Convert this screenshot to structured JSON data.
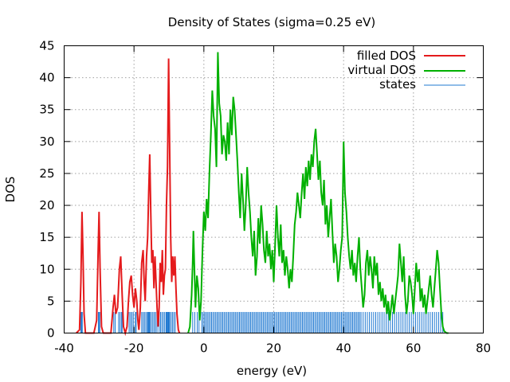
{
  "chart_data": {
    "type": "line",
    "title": "Density of States (sigma=0.25 eV)",
    "xlabel": "energy (eV)",
    "ylabel": "DOS",
    "xlim": [
      -40,
      80
    ],
    "ylim": [
      0,
      45
    ],
    "xticks": [
      -40,
      -20,
      0,
      20,
      40,
      60,
      80
    ],
    "yticks": [
      0,
      5,
      10,
      15,
      20,
      25,
      30,
      35,
      40,
      45
    ],
    "grid": true,
    "legend_position": "top-right",
    "series": [
      {
        "name": "filled DOS",
        "color": "#e41a1c",
        "points": [
          [
            -36.5,
            0
          ],
          [
            -35.6,
            0.5
          ],
          [
            -35.2,
            8
          ],
          [
            -34.9,
            19
          ],
          [
            -34.6,
            12
          ],
          [
            -34.3,
            3
          ],
          [
            -33.9,
            0
          ],
          [
            -31.5,
            0
          ],
          [
            -30.7,
            2
          ],
          [
            -30.3,
            12
          ],
          [
            -30.0,
            19
          ],
          [
            -29.7,
            10
          ],
          [
            -29.3,
            1
          ],
          [
            -28.8,
            0
          ],
          [
            -26.6,
            0
          ],
          [
            -26.0,
            4
          ],
          [
            -25.6,
            6
          ],
          [
            -25.2,
            3
          ],
          [
            -24.7,
            4
          ],
          [
            -24.2,
            10
          ],
          [
            -23.8,
            12
          ],
          [
            -23.4,
            6
          ],
          [
            -23.0,
            1
          ],
          [
            -22.5,
            0
          ],
          [
            -22.0,
            1
          ],
          [
            -21.6,
            5
          ],
          [
            -21.2,
            8
          ],
          [
            -20.8,
            9
          ],
          [
            -20.4,
            6
          ],
          [
            -20.0,
            4
          ],
          [
            -19.6,
            7
          ],
          [
            -19.2,
            5
          ],
          [
            -18.9,
            2
          ],
          [
            -18.6,
            0.5
          ],
          [
            -18.2,
            4
          ],
          [
            -17.8,
            11
          ],
          [
            -17.4,
            13
          ],
          [
            -17.1,
            8
          ],
          [
            -16.8,
            5
          ],
          [
            -16.4,
            12
          ],
          [
            -16.1,
            15
          ],
          [
            -15.8,
            22
          ],
          [
            -15.5,
            28
          ],
          [
            -15.2,
            19
          ],
          [
            -14.9,
            11
          ],
          [
            -14.6,
            13
          ],
          [
            -14.3,
            7
          ],
          [
            -14.0,
            12
          ],
          [
            -13.7,
            8
          ],
          [
            -13.4,
            4
          ],
          [
            -13.1,
            1
          ],
          [
            -12.8,
            4
          ],
          [
            -12.5,
            11
          ],
          [
            -12.2,
            8
          ],
          [
            -11.9,
            13
          ],
          [
            -11.6,
            6
          ],
          [
            -11.3,
            9
          ],
          [
            -11.0,
            10
          ],
          [
            -10.7,
            20
          ],
          [
            -10.4,
            26
          ],
          [
            -10.1,
            43
          ],
          [
            -9.8,
            29
          ],
          [
            -9.5,
            15
          ],
          [
            -9.2,
            8
          ],
          [
            -8.9,
            12
          ],
          [
            -8.6,
            9
          ],
          [
            -8.3,
            12
          ],
          [
            -8.0,
            7
          ],
          [
            -7.7,
            3
          ],
          [
            -7.3,
            0.5
          ],
          [
            -7.0,
            0
          ]
        ]
      },
      {
        "name": "virtual DOS",
        "color": "#00b000",
        "points": [
          [
            -4.5,
            0
          ],
          [
            -4.0,
            1
          ],
          [
            -3.5,
            6
          ],
          [
            -3.2,
            11
          ],
          [
            -3.0,
            16
          ],
          [
            -2.7,
            10
          ],
          [
            -2.4,
            4
          ],
          [
            -2.0,
            9
          ],
          [
            -1.6,
            7
          ],
          [
            -1.2,
            2
          ],
          [
            -0.8,
            5
          ],
          [
            -0.4,
            13
          ],
          [
            0.0,
            19
          ],
          [
            0.4,
            16
          ],
          [
            0.8,
            21
          ],
          [
            1.2,
            18
          ],
          [
            1.6,
            25
          ],
          [
            2.0,
            31
          ],
          [
            2.4,
            38
          ],
          [
            2.8,
            34
          ],
          [
            3.2,
            32
          ],
          [
            3.6,
            26
          ],
          [
            4.0,
            44
          ],
          [
            4.4,
            36
          ],
          [
            4.8,
            34
          ],
          [
            5.2,
            28
          ],
          [
            5.6,
            31
          ],
          [
            6.0,
            30
          ],
          [
            6.4,
            27
          ],
          [
            6.8,
            33
          ],
          [
            7.2,
            28
          ],
          [
            7.6,
            35
          ],
          [
            8.0,
            31
          ],
          [
            8.4,
            37
          ],
          [
            8.8,
            35
          ],
          [
            9.2,
            31
          ],
          [
            9.6,
            27
          ],
          [
            10.0,
            22
          ],
          [
            10.4,
            18
          ],
          [
            10.8,
            25
          ],
          [
            11.2,
            21
          ],
          [
            11.6,
            16
          ],
          [
            12.0,
            20
          ],
          [
            12.4,
            26
          ],
          [
            12.8,
            22
          ],
          [
            13.2,
            19
          ],
          [
            13.6,
            15
          ],
          [
            14.0,
            12
          ],
          [
            14.4,
            16
          ],
          [
            14.8,
            9
          ],
          [
            15.2,
            12
          ],
          [
            15.6,
            18
          ],
          [
            16.0,
            14
          ],
          [
            16.4,
            20
          ],
          [
            16.8,
            17
          ],
          [
            17.2,
            13
          ],
          [
            17.6,
            11
          ],
          [
            18.0,
            16
          ],
          [
            18.4,
            12
          ],
          [
            18.8,
            14
          ],
          [
            19.2,
            10
          ],
          [
            19.6,
            13
          ],
          [
            20.0,
            8
          ],
          [
            20.4,
            14
          ],
          [
            20.8,
            20
          ],
          [
            21.2,
            15
          ],
          [
            21.6,
            12
          ],
          [
            22.0,
            17
          ],
          [
            22.4,
            11
          ],
          [
            22.8,
            13
          ],
          [
            23.2,
            9
          ],
          [
            23.6,
            12
          ],
          [
            24.0,
            10
          ],
          [
            24.4,
            7
          ],
          [
            24.8,
            10
          ],
          [
            25.2,
            8
          ],
          [
            25.6,
            12
          ],
          [
            26.0,
            17
          ],
          [
            26.4,
            19
          ],
          [
            26.8,
            22
          ],
          [
            27.2,
            20
          ],
          [
            27.6,
            18
          ],
          [
            28.0,
            22
          ],
          [
            28.4,
            25
          ],
          [
            28.8,
            21
          ],
          [
            29.2,
            26
          ],
          [
            29.6,
            23
          ],
          [
            30.0,
            27
          ],
          [
            30.4,
            24
          ],
          [
            30.8,
            28
          ],
          [
            31.2,
            26
          ],
          [
            31.6,
            30
          ],
          [
            32.0,
            32
          ],
          [
            32.4,
            28
          ],
          [
            32.8,
            24
          ],
          [
            33.2,
            27
          ],
          [
            33.6,
            22
          ],
          [
            34.0,
            20
          ],
          [
            34.4,
            24
          ],
          [
            34.8,
            17
          ],
          [
            35.2,
            20
          ],
          [
            35.6,
            15
          ],
          [
            36.0,
            18
          ],
          [
            36.4,
            21
          ],
          [
            36.8,
            16
          ],
          [
            37.2,
            11
          ],
          [
            37.6,
            14
          ],
          [
            38.0,
            12
          ],
          [
            38.4,
            8
          ],
          [
            38.8,
            10
          ],
          [
            39.2,
            13
          ],
          [
            39.6,
            15
          ],
          [
            40.0,
            30
          ],
          [
            40.4,
            22
          ],
          [
            40.8,
            19
          ],
          [
            41.2,
            15
          ],
          [
            41.6,
            12
          ],
          [
            42.0,
            10
          ],
          [
            42.4,
            13
          ],
          [
            42.8,
            9
          ],
          [
            43.2,
            11
          ],
          [
            43.6,
            8
          ],
          [
            44.0,
            12
          ],
          [
            44.4,
            15
          ],
          [
            44.8,
            10
          ],
          [
            45.2,
            7
          ],
          [
            45.6,
            4
          ],
          [
            46.0,
            6
          ],
          [
            46.4,
            11
          ],
          [
            46.8,
            13
          ],
          [
            47.2,
            9
          ],
          [
            47.6,
            12
          ],
          [
            48.0,
            10
          ],
          [
            48.4,
            7
          ],
          [
            48.8,
            12
          ],
          [
            49.2,
            9
          ],
          [
            49.6,
            11
          ],
          [
            50.0,
            6
          ],
          [
            50.4,
            8
          ],
          [
            50.8,
            5
          ],
          [
            51.2,
            7
          ],
          [
            51.6,
            4
          ],
          [
            52.0,
            6
          ],
          [
            52.4,
            3
          ],
          [
            52.8,
            5
          ],
          [
            53.2,
            2
          ],
          [
            53.6,
            4
          ],
          [
            54.0,
            6
          ],
          [
            54.4,
            3
          ],
          [
            54.8,
            5
          ],
          [
            55.2,
            7
          ],
          [
            55.6,
            9
          ],
          [
            56.0,
            14
          ],
          [
            56.4,
            11
          ],
          [
            56.8,
            8
          ],
          [
            57.2,
            12
          ],
          [
            57.6,
            6
          ],
          [
            58.0,
            3
          ],
          [
            58.4,
            5
          ],
          [
            58.8,
            9
          ],
          [
            59.2,
            8
          ],
          [
            59.6,
            6
          ],
          [
            60.0,
            3
          ],
          [
            60.4,
            7
          ],
          [
            60.8,
            11
          ],
          [
            61.2,
            8
          ],
          [
            61.6,
            10
          ],
          [
            62.0,
            5
          ],
          [
            62.4,
            7
          ],
          [
            62.8,
            4
          ],
          [
            63.2,
            6
          ],
          [
            63.6,
            3
          ],
          [
            64.0,
            5
          ],
          [
            64.4,
            7
          ],
          [
            64.8,
            9
          ],
          [
            65.2,
            6
          ],
          [
            65.6,
            4
          ],
          [
            66.0,
            7
          ],
          [
            66.4,
            10
          ],
          [
            66.8,
            13
          ],
          [
            67.2,
            11
          ],
          [
            67.6,
            7
          ],
          [
            68.0,
            3
          ],
          [
            68.4,
            1
          ],
          [
            68.8,
            0.3
          ],
          [
            69.5,
            0
          ],
          [
            70.0,
            0
          ]
        ]
      },
      {
        "name": "states",
        "color": "#1f78d1",
        "height": 3.3,
        "energies": [
          -35.2,
          -35.0,
          -34.8,
          -30.2,
          -30.0,
          -29.8,
          -25.8,
          -25.4,
          -24.4,
          -24.0,
          -23.6,
          -23.4,
          -21.4,
          -21.0,
          -20.6,
          -20.2,
          -19.6,
          -19.4,
          -17.8,
          -17.4,
          -17.0,
          -16.6,
          -16.2,
          -16.0,
          -15.8,
          -15.6,
          -15.4,
          -15.0,
          -14.6,
          -14.2,
          -13.8,
          -13.4,
          -12.8,
          -12.4,
          -12.0,
          -11.6,
          -11.2,
          -10.8,
          -10.6,
          -10.4,
          -10.2,
          -10.0,
          -9.8,
          -9.4,
          -9.0,
          -8.6,
          -8.2,
          -3.2,
          -2.6,
          -1.9,
          -1.4,
          -0.6,
          -0.2,
          0.2,
          0.6,
          1.0,
          1.4,
          1.8,
          2.2,
          2.6,
          3.0,
          3.4,
          3.8,
          4.2,
          4.6,
          5.0,
          5.4,
          5.8,
          6.2,
          6.6,
          7.0,
          7.4,
          7.8,
          8.2,
          8.6,
          9.0,
          9.4,
          9.8,
          10.2,
          10.6,
          11.0,
          11.4,
          11.8,
          12.2,
          12.6,
          13.0,
          13.4,
          13.8,
          14.2,
          14.6,
          15.0,
          15.4,
          15.8,
          16.2,
          16.6,
          17.0,
          17.4,
          17.8,
          18.2,
          18.6,
          19.0,
          19.4,
          19.8,
          20.2,
          20.6,
          21.0,
          21.4,
          21.8,
          22.2,
          22.6,
          23.0,
          23.4,
          23.8,
          24.2,
          24.6,
          25.0,
          25.4,
          25.8,
          26.2,
          26.6,
          27.0,
          27.4,
          27.8,
          28.2,
          28.6,
          29.0,
          29.4,
          29.8,
          30.2,
          30.6,
          31.0,
          31.4,
          31.8,
          32.2,
          32.6,
          33.0,
          33.4,
          33.8,
          34.2,
          34.6,
          35.0,
          35.4,
          35.8,
          36.2,
          36.6,
          37.0,
          37.4,
          37.8,
          38.2,
          38.6,
          39.0,
          39.4,
          39.8,
          40.2,
          40.6,
          41.0,
          41.4,
          41.8,
          42.2,
          42.6,
          43.0,
          43.4,
          43.8,
          44.2,
          44.6,
          45.0,
          45.6,
          46.2,
          46.8,
          47.4,
          48.0,
          48.6,
          49.2,
          49.8,
          50.4,
          51.0,
          51.6,
          52.2,
          52.8,
          53.4,
          54.0,
          54.6,
          55.2,
          55.8,
          56.4,
          57.0,
          57.6,
          58.2,
          58.8,
          59.4,
          60.0,
          60.6,
          61.2,
          61.8,
          62.4,
          63.0,
          63.6,
          64.2,
          64.8,
          65.4,
          66.0,
          66.6,
          67.2,
          67.8,
          68.4
        ]
      }
    ]
  }
}
